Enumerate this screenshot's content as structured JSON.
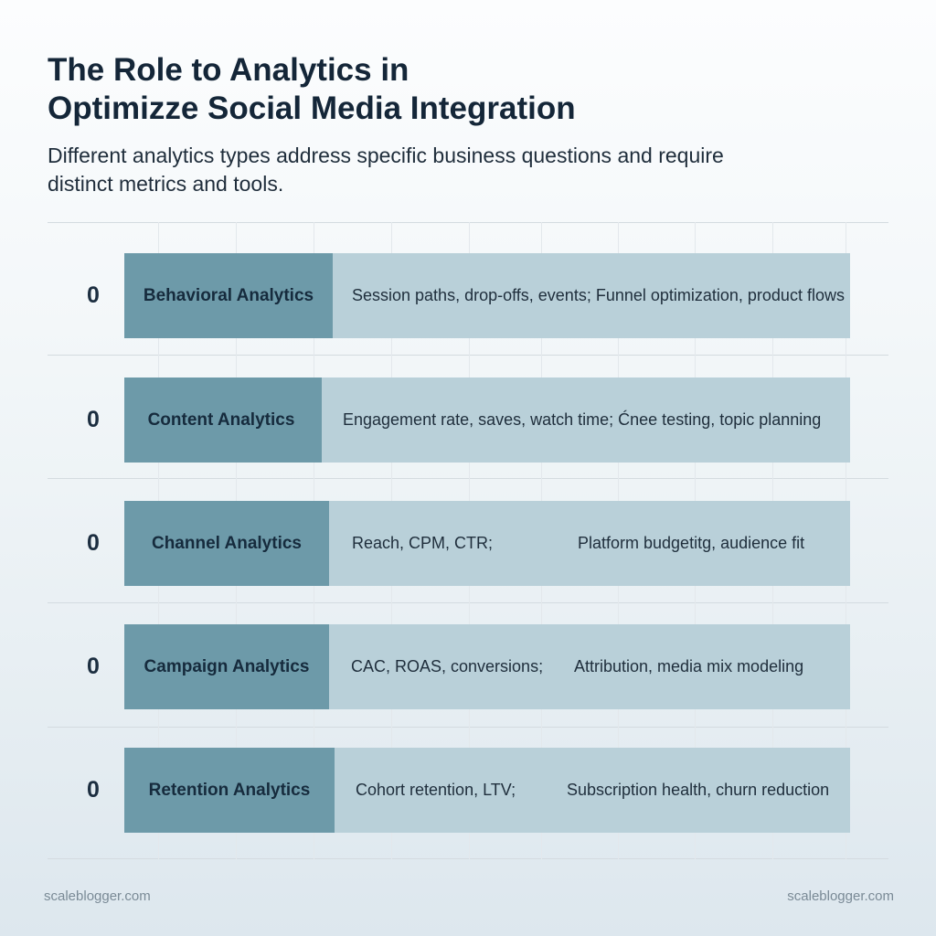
{
  "header": {
    "title_line1": "The Role to Analytics in",
    "title_line2": "Optimizze Social Media Integration",
    "subtitle_line1": "Different analytics types address specific business questions and require",
    "subtitle_line2": "distinct metrics and tools."
  },
  "rows": [
    {
      "number": "0",
      "label": "Behavioral Analytics",
      "metrics": "Session paths, drop-offs, events; Funnel optimization, product flows",
      "use_case": ""
    },
    {
      "number": "0",
      "label": "Content Analytics",
      "metrics": "Engagement rate, saves, watch time; Ćnee testing, topic planning",
      "use_case": ""
    },
    {
      "number": "0",
      "label": "Channel Analytics",
      "metrics": "Reach, CPM, CTR;",
      "use_case": "Platform budgetitg, audience fit"
    },
    {
      "number": "0",
      "label": "Campaign Analytics",
      "metrics": "CAC, ROAS, conversions;",
      "use_case": "Attribution, media mix modeling"
    },
    {
      "number": "0",
      "label": "Retention Analytics",
      "metrics": "Cohort retention, LTV;",
      "use_case": "Subscription health, churn reduction"
    }
  ],
  "footer": {
    "left_watermark": "scaleblogger.com",
    "right_watermark": "scaleblogger.com"
  },
  "colors": {
    "label_cell": "#6d9aa9",
    "row_bar": "#b9d0d9",
    "title_text": "#142638"
  }
}
